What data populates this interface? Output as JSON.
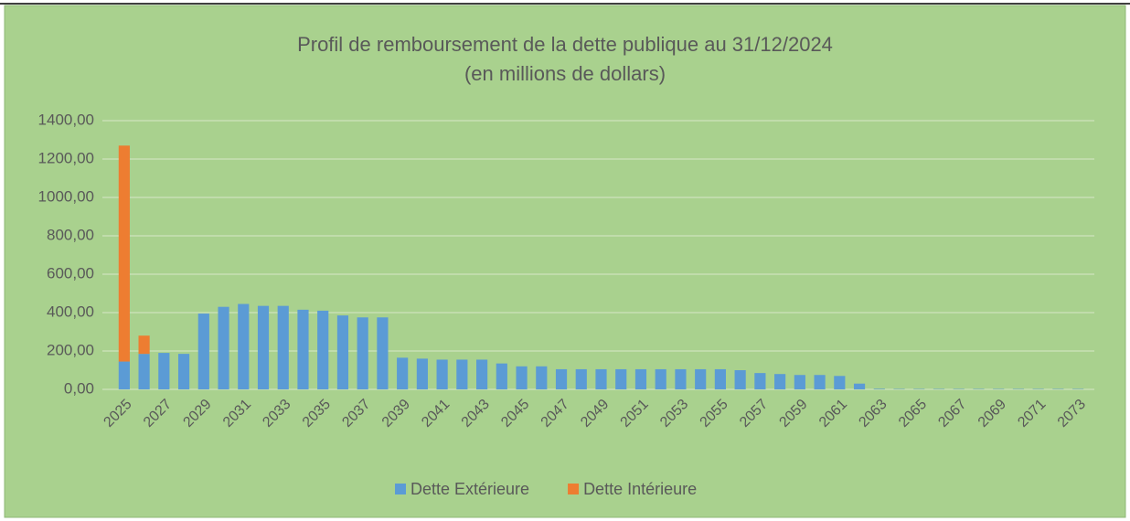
{
  "chart_data": {
    "type": "bar",
    "stacked": true,
    "title": "Profil de remboursement de la dette publique au 31/12/2024",
    "subtitle": "(en millions de dollars)",
    "categories": [
      "2025",
      null,
      "2027",
      null,
      "2029",
      null,
      "2031",
      null,
      "2033",
      null,
      "2035",
      null,
      "2037",
      null,
      "2039",
      null,
      "2041",
      null,
      "2043",
      null,
      "2045",
      null,
      "2047",
      null,
      "2049",
      null,
      "2051",
      null,
      "2053",
      null,
      "2055",
      null,
      "2057",
      null,
      "2059",
      null,
      "2061",
      null,
      "2063",
      null,
      "2065",
      null,
      "2067",
      null,
      "2069",
      null,
      "2071",
      null,
      "2073"
    ],
    "series": [
      {
        "name": "Dette Extérieure",
        "color": "#5b9bd5",
        "values": [
          145,
          185,
          190,
          185,
          395,
          430,
          445,
          435,
          435,
          415,
          410,
          385,
          375,
          375,
          165,
          160,
          155,
          155,
          155,
          135,
          120,
          120,
          105,
          105,
          105,
          105,
          105,
          105,
          105,
          105,
          105,
          100,
          85,
          80,
          75,
          75,
          70,
          30,
          3,
          2,
          2,
          2,
          2,
          2,
          2,
          2,
          2,
          2,
          2
        ]
      },
      {
        "name": "Dette Intérieure",
        "color": "#ed7d31",
        "values": [
          1125,
          95,
          0,
          0,
          0,
          0,
          0,
          0,
          0,
          0,
          0,
          0,
          0,
          0,
          0,
          0,
          0,
          0,
          0,
          0,
          0,
          0,
          0,
          0,
          0,
          0,
          0,
          0,
          0,
          0,
          0,
          0,
          0,
          0,
          0,
          0,
          0,
          0,
          0,
          0,
          0,
          0,
          0,
          0,
          0,
          0,
          0,
          0,
          0
        ]
      }
    ],
    "ylim": [
      0,
      1400
    ],
    "yticks": [
      {
        "value": 0,
        "label": "0,00"
      },
      {
        "value": 200,
        "label": "200,00"
      },
      {
        "value": 400,
        "label": "400,00"
      },
      {
        "value": 600,
        "label": "600,00"
      },
      {
        "value": 800,
        "label": "800,00"
      },
      {
        "value": 1000,
        "label": "1000,00"
      },
      {
        "value": 1200,
        "label": "1200,00"
      },
      {
        "value": 1400,
        "label": "1400,00"
      }
    ],
    "grid": true,
    "legend": "bottom"
  }
}
